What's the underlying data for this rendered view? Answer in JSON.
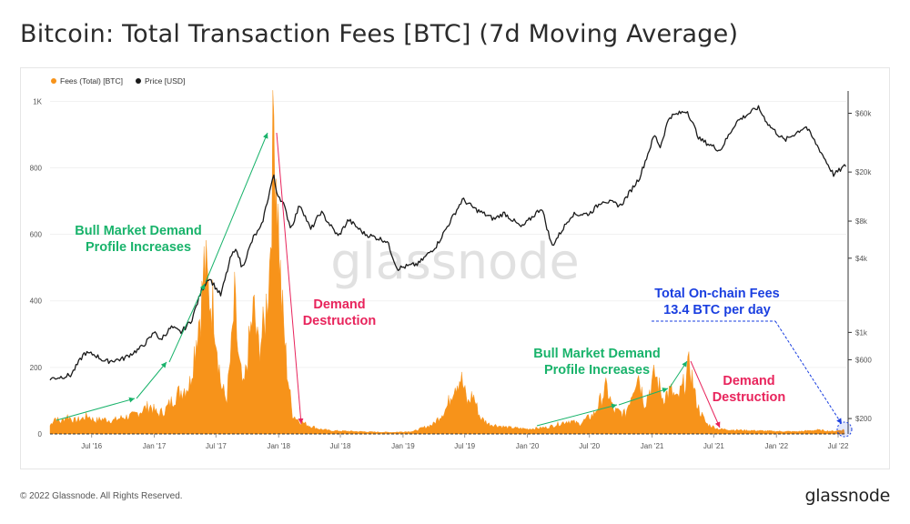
{
  "page": {
    "title": "Bitcoin: Total Transaction Fees [BTC] (7d Moving Average)",
    "footer": "© 2022 Glassnode. All Rights Reserved.",
    "brand": "glassnode",
    "watermark": "glassnode"
  },
  "colors": {
    "fees": "#f7931a",
    "price": "#1a1a1a",
    "green": "#19b36b",
    "red": "#e8245c",
    "blue": "#1a3fe0"
  },
  "chart_data": {
    "type": "area",
    "legend": [
      {
        "name": "Fees (Total) [BTC]",
        "color": "#f7931a"
      },
      {
        "name": "Price [USD]",
        "color": "#1a1a1a"
      }
    ],
    "x_ticks": [
      "Jul '16",
      "Jan '17",
      "Jul '17",
      "Jan '18",
      "Jul '18",
      "Jan '19",
      "Jul '19",
      "Jan '20",
      "Jul '20",
      "Jan '21",
      "Jul '21",
      "Jan '22",
      "Jul '22"
    ],
    "x_range": [
      "2016-03-01",
      "2022-07-25"
    ],
    "y_left": {
      "ticks": [
        0,
        200,
        400,
        600,
        800,
        1000
      ],
      "tick_labels": [
        "0",
        "200",
        "400",
        "600",
        "800",
        "1K"
      ],
      "range": [
        0,
        1020
      ]
    },
    "y_right": {
      "scale": "log",
      "ticks": [
        200,
        600,
        1000,
        4000,
        8000,
        20000,
        60000
      ],
      "tick_labels": [
        "$200",
        "$600",
        "$1k",
        "$4k",
        "$8k",
        "$20k",
        "$60k"
      ],
      "range": [
        150,
        85000
      ]
    },
    "fees_series": {
      "name": "Fees (Total) [BTC]",
      "points": [
        [
          "2016-03-01",
          25
        ],
        [
          "2016-03-15",
          50
        ],
        [
          "2016-04-01",
          35
        ],
        [
          "2016-04-20",
          55
        ],
        [
          "2016-05-10",
          40
        ],
        [
          "2016-06-01",
          45
        ],
        [
          "2016-06-20",
          55
        ],
        [
          "2016-07-10",
          40
        ],
        [
          "2016-08-01",
          45
        ],
        [
          "2016-09-01",
          40
        ],
        [
          "2016-10-01",
          50
        ],
        [
          "2016-11-01",
          55
        ],
        [
          "2016-12-01",
          75
        ],
        [
          "2016-12-20",
          85
        ],
        [
          "2017-01-10",
          60
        ],
        [
          "2017-02-01",
          70
        ],
        [
          "2017-03-01",
          110
        ],
        [
          "2017-03-20",
          130
        ],
        [
          "2017-04-15",
          150
        ],
        [
          "2017-05-05",
          300
        ],
        [
          "2017-05-20",
          400
        ],
        [
          "2017-05-28",
          520
        ],
        [
          "2017-06-10",
          420
        ],
        [
          "2017-06-25",
          380
        ],
        [
          "2017-07-15",
          150
        ],
        [
          "2017-08-01",
          100
        ],
        [
          "2017-08-15",
          250
        ],
        [
          "2017-08-25",
          400
        ],
        [
          "2017-09-05",
          220
        ],
        [
          "2017-09-20",
          130
        ],
        [
          "2017-10-05",
          260
        ],
        [
          "2017-10-20",
          380
        ],
        [
          "2017-11-01",
          260
        ],
        [
          "2017-11-20",
          320
        ],
        [
          "2017-12-05",
          500
        ],
        [
          "2017-12-18",
          950
        ],
        [
          "2017-12-25",
          800
        ],
        [
          "2018-01-08",
          420
        ],
        [
          "2018-01-25",
          200
        ],
        [
          "2018-02-10",
          60
        ],
        [
          "2018-03-01",
          40
        ],
        [
          "2018-04-01",
          25
        ],
        [
          "2018-05-01",
          15
        ],
        [
          "2018-06-01",
          10
        ],
        [
          "2018-08-01",
          8
        ],
        [
          "2018-10-01",
          6
        ],
        [
          "2018-12-01",
          5
        ],
        [
          "2019-02-01",
          8
        ],
        [
          "2019-04-01",
          30
        ],
        [
          "2019-05-10",
          80
        ],
        [
          "2019-06-01",
          150
        ],
        [
          "2019-06-20",
          170
        ],
        [
          "2019-07-10",
          90
        ],
        [
          "2019-07-25",
          120
        ],
        [
          "2019-08-15",
          50
        ],
        [
          "2019-09-10",
          30
        ],
        [
          "2019-11-01",
          20
        ],
        [
          "2020-01-01",
          15
        ],
        [
          "2020-03-01",
          20
        ],
        [
          "2020-05-01",
          40
        ],
        [
          "2020-06-01",
          30
        ],
        [
          "2020-07-15",
          60
        ],
        [
          "2020-08-20",
          140
        ],
        [
          "2020-09-10",
          70
        ],
        [
          "2020-10-15",
          60
        ],
        [
          "2020-11-01",
          120
        ],
        [
          "2020-11-20",
          190
        ],
        [
          "2020-12-10",
          90
        ],
        [
          "2021-01-10",
          180
        ],
        [
          "2021-02-01",
          110
        ],
        [
          "2021-02-25",
          130
        ],
        [
          "2021-03-15",
          100
        ],
        [
          "2021-04-05",
          150
        ],
        [
          "2021-04-22",
          210
        ],
        [
          "2021-05-08",
          110
        ],
        [
          "2021-05-20",
          70
        ],
        [
          "2021-06-10",
          30
        ],
        [
          "2021-07-15",
          15
        ],
        [
          "2021-09-01",
          12
        ],
        [
          "2021-11-01",
          10
        ],
        [
          "2022-01-01",
          8
        ],
        [
          "2022-03-01",
          7
        ],
        [
          "2022-05-01",
          12
        ],
        [
          "2022-06-15",
          8
        ],
        [
          "2022-07-20",
          13
        ]
      ]
    },
    "price_series": {
      "name": "Price [USD]",
      "points": [
        [
          "2016-03-01",
          420
        ],
        [
          "2016-05-01",
          450
        ],
        [
          "2016-06-10",
          680
        ],
        [
          "2016-07-10",
          660
        ],
        [
          "2016-08-10",
          580
        ],
        [
          "2016-10-01",
          610
        ],
        [
          "2016-11-20",
          740
        ],
        [
          "2016-12-20",
          900
        ],
        [
          "2017-01-05",
          1050
        ],
        [
          "2017-01-15",
          850
        ],
        [
          "2017-02-20",
          1100
        ],
        [
          "2017-03-20",
          1000
        ],
        [
          "2017-04-20",
          1250
        ],
        [
          "2017-05-20",
          2200
        ],
        [
          "2017-06-10",
          2800
        ],
        [
          "2017-07-15",
          2000
        ],
        [
          "2017-08-15",
          4200
        ],
        [
          "2017-09-01",
          4700
        ],
        [
          "2017-09-15",
          3300
        ],
        [
          "2017-10-20",
          6000
        ],
        [
          "2017-11-10",
          7000
        ],
        [
          "2017-12-17",
          19000
        ],
        [
          "2017-12-25",
          14000
        ],
        [
          "2018-01-15",
          11000
        ],
        [
          "2018-02-06",
          7000
        ],
        [
          "2018-03-05",
          11000
        ],
        [
          "2018-04-05",
          6800
        ],
        [
          "2018-05-05",
          9500
        ],
        [
          "2018-06-25",
          6000
        ],
        [
          "2018-07-25",
          8200
        ],
        [
          "2018-09-10",
          6300
        ],
        [
          "2018-11-15",
          5500
        ],
        [
          "2018-12-15",
          3300
        ],
        [
          "2019-02-15",
          3600
        ],
        [
          "2019-04-10",
          5100
        ],
        [
          "2019-06-25",
          12000
        ],
        [
          "2019-08-01",
          10000
        ],
        [
          "2019-09-25",
          8300
        ],
        [
          "2019-10-25",
          9300
        ],
        [
          "2019-12-15",
          7100
        ],
        [
          "2020-02-12",
          10300
        ],
        [
          "2020-03-13",
          5000
        ],
        [
          "2020-05-10",
          9000
        ],
        [
          "2020-07-01",
          9200
        ],
        [
          "2020-08-10",
          11800
        ],
        [
          "2020-10-01",
          10700
        ],
        [
          "2020-11-25",
          18000
        ],
        [
          "2021-01-08",
          40000
        ],
        [
          "2021-01-25",
          32000
        ],
        [
          "2021-02-20",
          56000
        ],
        [
          "2021-04-14",
          63000
        ],
        [
          "2021-05-20",
          37000
        ],
        [
          "2021-07-20",
          30000
        ],
        [
          "2021-09-05",
          51000
        ],
        [
          "2021-11-08",
          67000
        ],
        [
          "2021-12-10",
          48000
        ],
        [
          "2022-01-25",
          36000
        ],
        [
          "2022-03-28",
          47000
        ],
        [
          "2022-05-12",
          29000
        ],
        [
          "2022-06-18",
          19000
        ],
        [
          "2022-07-25",
          22800
        ]
      ]
    },
    "annotations": [
      {
        "id": "bull1",
        "text_lines": [
          "Bull Market Demand",
          "Profile Increases"
        ],
        "color": "#19b36b"
      },
      {
        "id": "destr1",
        "text_lines": [
          "Demand",
          "Destruction"
        ],
        "color": "#e8245c"
      },
      {
        "id": "bull2",
        "text_lines": [
          "Bull Market Demand",
          "Profile Increases"
        ],
        "color": "#19b36b"
      },
      {
        "id": "destr2",
        "text_lines": [
          "Demand",
          "Destruction"
        ],
        "color": "#e8245c"
      },
      {
        "id": "total",
        "text_lines": [
          "Total On-chain Fees",
          "13.4 BTC per day"
        ],
        "color": "#1a3fe0"
      }
    ]
  }
}
